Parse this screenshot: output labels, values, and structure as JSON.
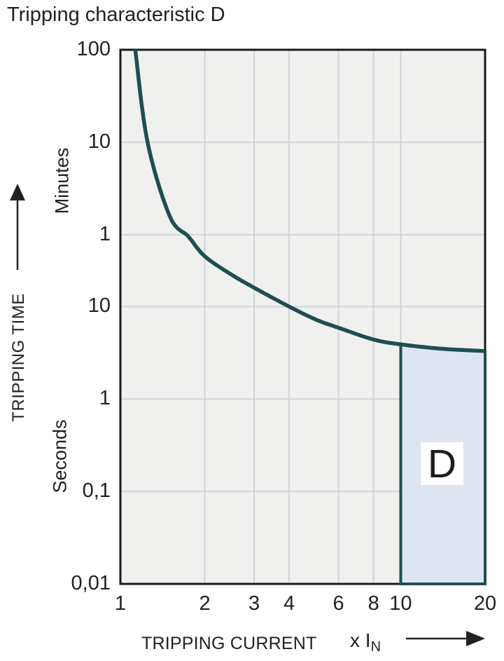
{
  "page_title": "Tripping characteristic D",
  "colors": {
    "curve": "#1e4e51",
    "region_fill": "#dfe4f1",
    "plot_bg": "#f0f0ee",
    "grid": "#d2d5d9",
    "plot_border": "#1a1a1a",
    "text": "#232122"
  },
  "chart_data": {
    "type": "line",
    "title": "Tripping characteristic D",
    "scale": "log-log",
    "grid": "on, major decades only",
    "x_axis": {
      "label": "TRIPPING CURRENT",
      "unit_prefix": "x I",
      "unit_sub": "N",
      "range": [
        1,
        20
      ],
      "ticks": [
        {
          "label": "1",
          "value": 1,
          "grid": false
        },
        {
          "label": "2",
          "value": 2,
          "grid": true
        },
        {
          "label": "3",
          "value": 3,
          "grid": true
        },
        {
          "label": "4",
          "value": 4,
          "grid": true
        },
        {
          "label": "6",
          "value": 6,
          "grid": true
        },
        {
          "label": "8",
          "value": 8,
          "grid": true
        },
        {
          "label": "10",
          "value": 10,
          "grid": true
        },
        {
          "label": "20",
          "value": 20,
          "grid": false
        }
      ]
    },
    "y_axis": {
      "label": "TRIPPING TIME",
      "units": [
        "Minutes",
        "Seconds"
      ],
      "range_seconds": [
        0.01,
        6000
      ],
      "ticks": [
        {
          "label": "100",
          "seconds": 6000,
          "grid": false
        },
        {
          "label": "10",
          "seconds": 600,
          "grid": true
        },
        {
          "label": "1",
          "seconds": 60,
          "grid": true
        },
        {
          "label": "10",
          "seconds": 10,
          "grid": true
        },
        {
          "label": "1",
          "seconds": 1,
          "grid": true
        },
        {
          "label": "0,1",
          "seconds": 0.1,
          "grid": true
        },
        {
          "label": "0,01",
          "seconds": 0.01,
          "grid": false
        }
      ]
    },
    "series": [
      {
        "name": "thermal-tripping-curve",
        "points_x_multiple_vs_seconds": [
          [
            1.13,
            6000
          ],
          [
            1.25,
            600
          ],
          [
            1.5,
            95
          ],
          [
            1.75,
            57
          ],
          [
            2,
            35
          ],
          [
            2.5,
            22
          ],
          [
            3,
            16
          ],
          [
            4,
            10
          ],
          [
            5,
            7.2
          ],
          [
            6,
            5.9
          ],
          [
            8,
            4.4
          ],
          [
            10,
            3.9
          ],
          [
            14,
            3.5
          ],
          [
            20,
            3.3
          ]
        ]
      }
    ],
    "region": {
      "label": "D",
      "x_from": 10,
      "x_to": 20,
      "t_bottom_seconds": 0.01,
      "top_boundary": "follows tripping curve (~3.9 s at 10x to ~3.3 s at 20x)"
    }
  }
}
